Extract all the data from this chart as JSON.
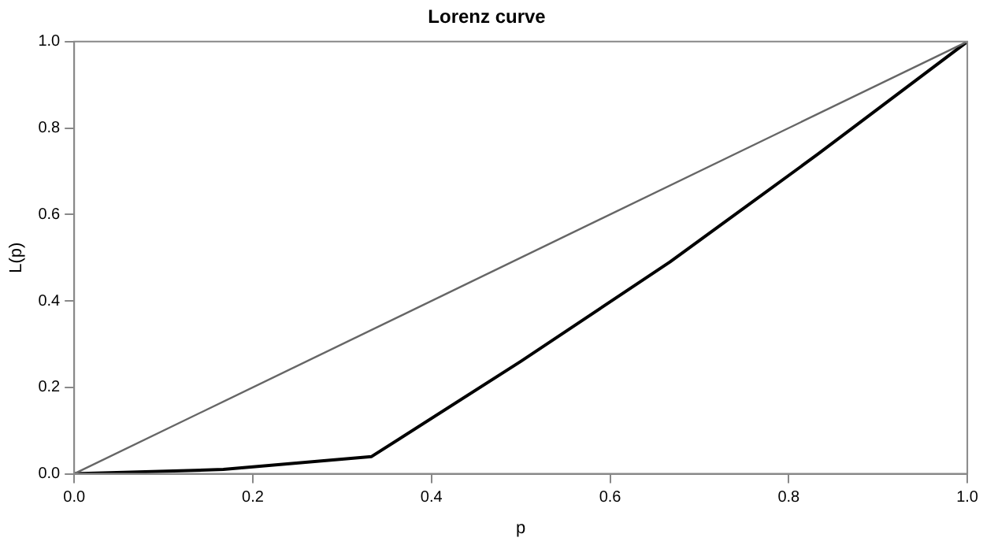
{
  "chart_data": {
    "type": "line",
    "title": "Lorenz curve",
    "xlabel": "p",
    "ylabel": "L(p)",
    "xlim": [
      0,
      1
    ],
    "ylim": [
      0,
      1
    ],
    "xticks": [
      {
        "value": 0,
        "label": "0.0"
      },
      {
        "value": 0.2,
        "label": "0.2"
      },
      {
        "value": 0.4,
        "label": "0.4"
      },
      {
        "value": 0.6,
        "label": "0.6"
      },
      {
        "value": 0.8,
        "label": "0.8"
      },
      {
        "value": 1,
        "label": "1.0"
      }
    ],
    "yticks": [
      {
        "value": 0,
        "label": "0.0"
      },
      {
        "value": 0.2,
        "label": "0.2"
      },
      {
        "value": 0.4,
        "label": "0.4"
      },
      {
        "value": 0.6,
        "label": "0.6"
      },
      {
        "value": 0.8,
        "label": "0.8"
      },
      {
        "value": 1,
        "label": "1.0"
      }
    ],
    "grid": false,
    "legend": false,
    "marker": "none",
    "line_style": "solid",
    "series": [
      {
        "color": "#666666",
        "x": [
          0,
          1
        ],
        "values": [
          0,
          1
        ]
      },
      {
        "color": "#000000",
        "x": [
          0,
          0.167,
          0.333,
          0.5,
          0.667,
          0.833,
          1
        ],
        "values": [
          0,
          0.01,
          0.04,
          0.26,
          0.49,
          0.74,
          1
        ]
      }
    ]
  }
}
